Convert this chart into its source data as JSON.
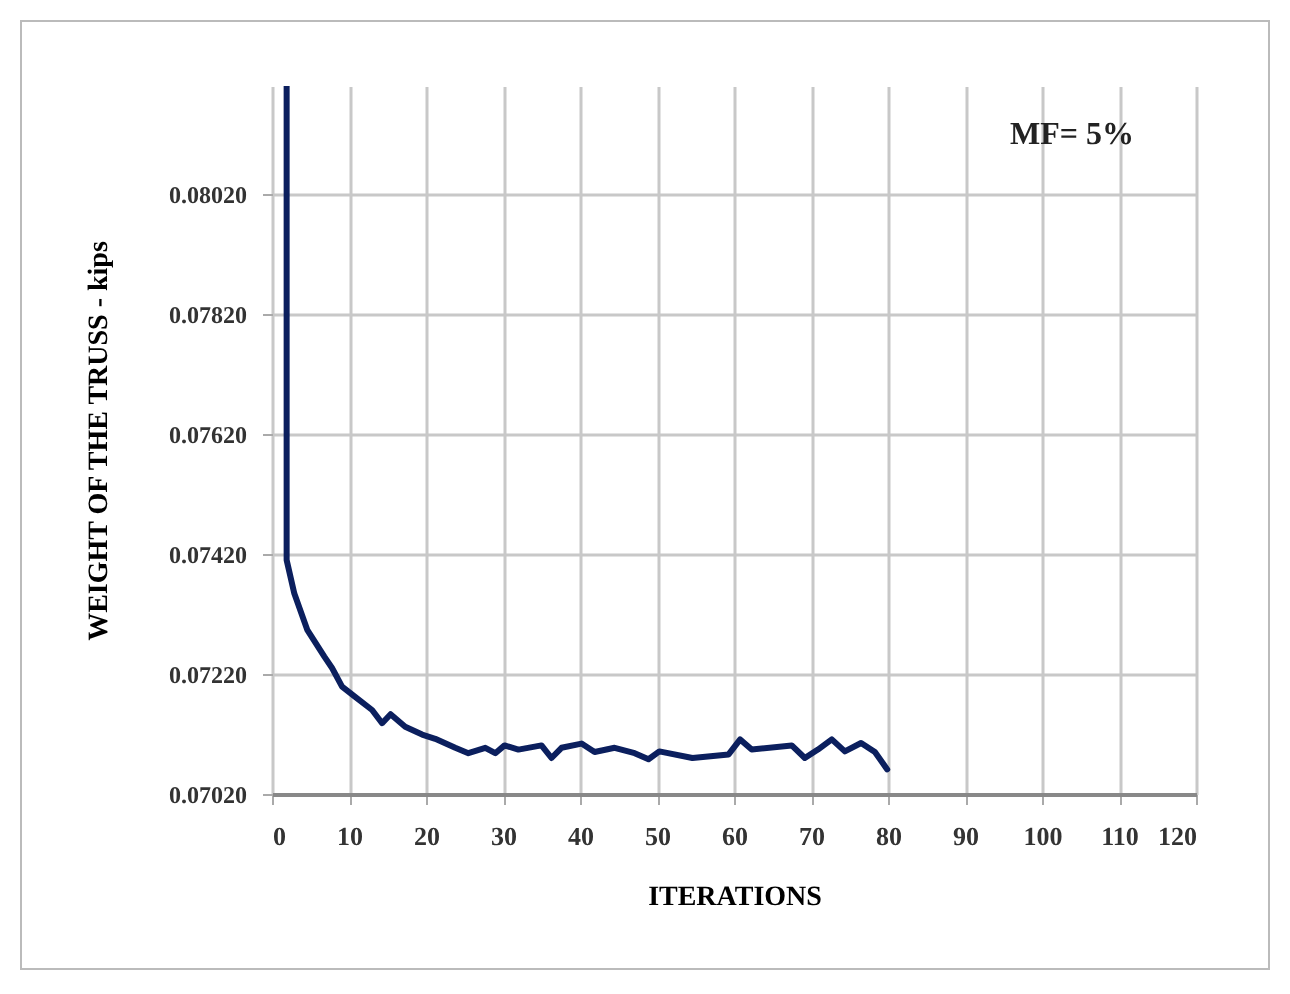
{
  "chart_data": {
    "type": "line",
    "xlabel": "ITERATIONS",
    "ylabel": "WEIGHT   OF   THE   TRUSS  -  kips",
    "annotations": [
      "MF=  5%"
    ],
    "x": [
      1.9,
      1.9,
      2.9,
      4.6,
      6.8,
      7.8,
      9.1,
      10.8,
      13,
      14.3,
      15.4,
      17.3,
      19.5,
      21.2,
      23.8,
      25.5,
      27.7,
      29,
      30.2,
      32,
      35,
      36.3,
      37.6,
      40.2,
      41.9,
      44.5,
      47.1,
      48.9,
      50.3,
      54.6,
      59.3,
      60.8,
      62.3,
      67.5,
      69.2,
      70.9,
      72.7,
      74.4,
      76.5,
      78.3,
      79.9
    ],
    "series": [
      {
        "color": "#0b1f5e",
        "values": [
          0.082,
          0.0741,
          0.07354,
          0.07293,
          0.07249,
          0.0723,
          0.07199,
          0.07182,
          0.0716,
          0.07138,
          0.07153,
          0.07132,
          0.07119,
          0.07112,
          0.07097,
          0.07088,
          0.07097,
          0.07088,
          0.07101,
          0.07094,
          0.07101,
          0.0708,
          0.07097,
          0.07104,
          0.0709,
          0.07097,
          0.07088,
          0.07078,
          0.07091,
          0.0708,
          0.07086,
          0.07111,
          0.07094,
          0.07101,
          0.0708,
          0.07094,
          0.07111,
          0.07091,
          0.07105,
          0.0709,
          0.07061
        ]
      }
    ],
    "xlim": [
      0,
      120
    ],
    "xticks": [
      0,
      10,
      20,
      30,
      40,
      50,
      60,
      70,
      80,
      90,
      100,
      110,
      120
    ],
    "ylim": [
      0.0702,
      0.082
    ],
    "yticks": [
      {
        "value": 0.0702,
        "label": "0.07020"
      },
      {
        "value": 0.0722,
        "label": "0.07220"
      },
      {
        "value": 0.0742,
        "label": "0.07420"
      },
      {
        "value": 0.0762,
        "label": "0.07620"
      },
      {
        "value": 0.0782,
        "label": "0.07820"
      },
      {
        "value": 0.0802,
        "label": "0.08020"
      }
    ],
    "grid": true,
    "marker": "none",
    "line_style": "solid"
  }
}
